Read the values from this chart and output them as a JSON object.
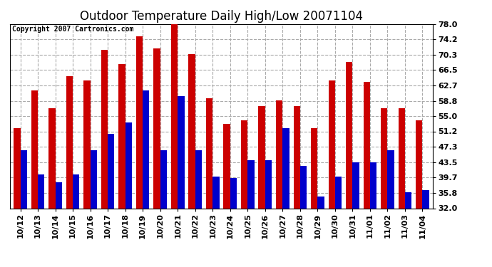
{
  "title": "Outdoor Temperature Daily High/Low 20071104",
  "copyright": "Copyright 2007 Cartronics.com",
  "categories": [
    "10/12",
    "10/13",
    "10/14",
    "10/15",
    "10/16",
    "10/17",
    "10/18",
    "10/19",
    "10/20",
    "10/21",
    "10/22",
    "10/23",
    "10/24",
    "10/25",
    "10/26",
    "10/27",
    "10/28",
    "10/29",
    "10/30",
    "10/31",
    "11/01",
    "11/02",
    "11/03",
    "11/04"
  ],
  "highs": [
    52.0,
    61.5,
    57.0,
    65.0,
    64.0,
    71.5,
    68.0,
    75.0,
    72.0,
    78.0,
    70.5,
    59.5,
    53.0,
    54.0,
    57.5,
    59.0,
    57.5,
    52.0,
    64.0,
    68.5,
    63.5,
    57.0,
    57.0,
    54.0
  ],
  "lows": [
    46.5,
    40.5,
    38.5,
    40.5,
    46.5,
    50.5,
    53.5,
    61.5,
    46.5,
    60.0,
    46.5,
    40.0,
    39.5,
    44.0,
    44.0,
    52.0,
    42.5,
    35.0,
    40.0,
    43.5,
    43.5,
    46.5,
    36.0,
    36.5
  ],
  "high_color": "#cc0000",
  "low_color": "#0000cc",
  "background_color": "#ffffff",
  "plot_bg_color": "#ffffff",
  "grid_color": "#aaaaaa",
  "ylim_min": 32.0,
  "ylim_max": 78.0,
  "yticks": [
    32.0,
    35.8,
    39.7,
    43.5,
    47.3,
    51.2,
    55.0,
    58.8,
    62.7,
    66.5,
    70.3,
    74.2,
    78.0
  ],
  "title_fontsize": 12,
  "copyright_fontsize": 7,
  "tick_fontsize": 8,
  "bar_width": 0.38
}
